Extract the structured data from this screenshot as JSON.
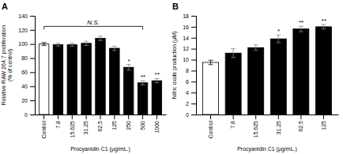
{
  "chart_data": [
    {
      "type": "bar",
      "title": "A",
      "categories": [
        "Control",
        "7.8",
        "15.625",
        "31.25",
        "62.5",
        "125",
        "250",
        "500",
        "1000"
      ],
      "values": [
        100,
        99,
        99,
        101,
        108,
        94,
        67,
        45,
        48
      ],
      "errors": [
        2,
        2,
        2,
        3,
        3,
        3,
        4,
        3,
        3
      ],
      "colors": [
        "white",
        "black",
        "black",
        "black",
        "black",
        "black",
        "black",
        "black",
        "black"
      ],
      "xlabel": "Procyanidin C1 (μg/mL.)",
      "ylabel": "Relative RAW 264.7 proliferation\n(% of control)",
      "ylim": [
        0,
        140
      ],
      "yticks": [
        0,
        20,
        40,
        60,
        80,
        100,
        120,
        140
      ],
      "grid": false,
      "annotations": [
        {
          "text": "*",
          "category": "250"
        },
        {
          "text": "**",
          "category": "500"
        },
        {
          "text": "**",
          "category": "1000"
        },
        {
          "text": "N.S.",
          "from": "Control",
          "to": "500",
          "y": 125
        }
      ]
    },
    {
      "type": "bar",
      "title": "B",
      "categories": [
        "Control",
        "7.8",
        "15.625",
        "31.25",
        "62.5",
        "125"
      ],
      "values": [
        9.5,
        11.2,
        12.2,
        13.8,
        15.6,
        16.0
      ],
      "errors": [
        0.4,
        0.8,
        0.5,
        0.7,
        0.5,
        0.4
      ],
      "colors": [
        "white",
        "black",
        "black",
        "black",
        "black",
        "black"
      ],
      "xlabel": "Procyanidin C1 (μg/mL.)",
      "ylabel": "Nitric oxide production (μM)",
      "ylim": [
        0,
        18
      ],
      "yticks": [
        0,
        2,
        4,
        6,
        8,
        10,
        12,
        14,
        16,
        18
      ],
      "grid": false,
      "annotations": [
        {
          "text": "*",
          "category": "31.25"
        },
        {
          "text": "**",
          "category": "62.5"
        },
        {
          "text": "**",
          "category": "125"
        }
      ]
    }
  ]
}
